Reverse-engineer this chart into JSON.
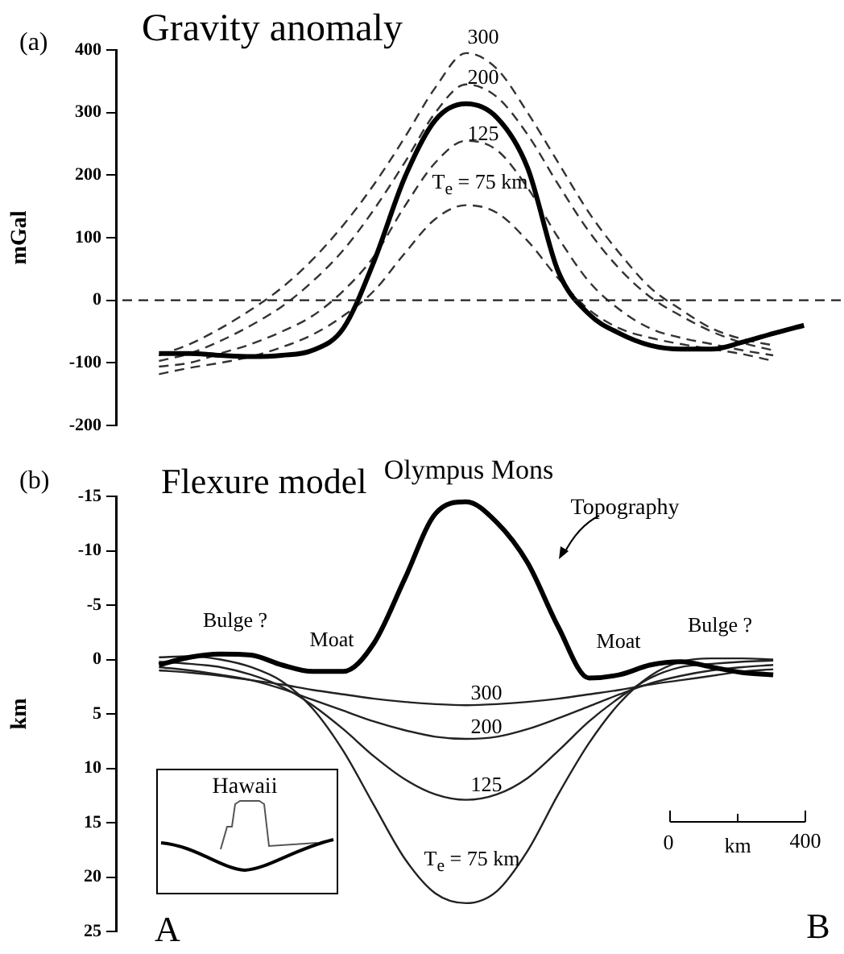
{
  "chart_data": [
    {
      "type": "line",
      "title": "Gravity anomaly",
      "ylabel": "mGal",
      "categories": [
        null,
        null,
        null,
        null,
        null,
        null,
        null,
        null,
        null,
        null,
        null,
        null,
        null,
        null,
        null,
        null,
        null,
        null,
        null,
        null,
        null,
        null
      ],
      "ylim": [
        -200,
        400
      ],
      "yticks": [
        -200,
        -100,
        0,
        100,
        200,
        300,
        400
      ],
      "tick_labels": "y",
      "grid": false,
      "legend": false,
      "marker": "none",
      "line_style": "solid",
      "series": [
        {
          "color": "#000000",
          "values": [
            -85,
            -85,
            -88,
            -90,
            -88,
            -80,
            -45,
            62,
            196,
            288,
            314,
            292,
            212,
            46,
            -22,
            -53,
            -72,
            -78,
            -78,
            -67,
            -53,
            -40
          ]
        },
        {
          "color": "#333333",
          "line_style": "dashed",
          "values": [
            -88,
            -70,
            -45,
            -15,
            20,
            65,
            120,
            185,
            260,
            340,
            395,
            370,
            300,
            220,
            140,
            75,
            20,
            -15,
            -45,
            -62,
            -72,
            null
          ]
        },
        {
          "color": "#333333",
          "line_style": "dashed",
          "values": [
            -97,
            -85,
            -65,
            -40,
            -10,
            30,
            80,
            145,
            220,
            300,
            345,
            325,
            265,
            185,
            110,
            50,
            5,
            -25,
            -50,
            -68,
            -80,
            null
          ]
        },
        {
          "color": "#333333",
          "line_style": "dashed",
          "values": [
            -106,
            -100,
            -85,
            -70,
            -50,
            -25,
            15,
            70,
            150,
            220,
            255,
            240,
            180,
            100,
            30,
            -15,
            -45,
            -60,
            -70,
            -80,
            -88,
            null
          ]
        },
        {
          "color": "#333333",
          "line_style": "dashed",
          "values": [
            -118,
            -108,
            -100,
            -90,
            -75,
            -55,
            -25,
            15,
            75,
            130,
            152,
            140,
            95,
            35,
            -15,
            -45,
            -60,
            -70,
            -78,
            -86,
            -97,
            null
          ]
        }
      ],
      "ref_lines": [
        {
          "axis": "y",
          "value": 0,
          "color": "#222222",
          "line_style": "dashed"
        }
      ],
      "annotations": [
        "(a)",
        "300",
        "200",
        "125",
        "T$_{e}$ = 75 km"
      ]
    },
    {
      "type": "line",
      "title": "Flexure model",
      "ylabel": "km",
      "categories": [
        null,
        null,
        null,
        null,
        null,
        null,
        null,
        null,
        null,
        null,
        null,
        null,
        null,
        null,
        null,
        null,
        null,
        null,
        null,
        null,
        null,
        null
      ],
      "ylim": [
        25,
        -15
      ],
      "yticks": [
        -15,
        -10,
        -5,
        0,
        5,
        10,
        15,
        20,
        25
      ],
      "tick_labels": "y",
      "grid": false,
      "legend": false,
      "marker": "none",
      "line_style": "solid",
      "series": [
        {
          "color": "#000000",
          "values": [
            0.5,
            -0.2,
            -0.5,
            -0.4,
            0.5,
            1.1,
            1.1,
            -1.5,
            -7.4,
            -13.4,
            -14.5,
            -12.6,
            -8.9,
            -3,
            1.7,
            1.4,
            0.5,
            0.2,
            0.7,
            1.2,
            1.4,
            null
          ]
        },
        {
          "color": "#222222",
          "values": [
            1,
            1.2,
            1.5,
            1.9,
            2.3,
            2.8,
            3.2,
            3.6,
            3.9,
            4.1,
            4.2,
            4.1,
            3.9,
            3.6,
            3.2,
            2.8,
            2.3,
            1.9,
            1.5,
            1.1,
            0.9,
            null
          ]
        },
        {
          "color": "#222222",
          "values": [
            0.7,
            1,
            1.4,
            1.9,
            2.7,
            3.7,
            4.7,
            5.7,
            6.5,
            7.1,
            7.3,
            7.1,
            6.4,
            5.4,
            4.3,
            3.2,
            2.2,
            1.5,
            1,
            0.7,
            0.5,
            null
          ]
        },
        {
          "color": "#222222",
          "values": [
            0.2,
            0.4,
            0.7,
            1.4,
            2.5,
            4.2,
            6.4,
            8.9,
            11,
            12.4,
            12.9,
            12.4,
            10.9,
            8.4,
            5.7,
            3.5,
            1.7,
            0.7,
            0.4,
            0.2,
            0.1,
            null
          ]
        },
        {
          "color": "#222222",
          "values": [
            -0.2,
            -0.3,
            0,
            0.7,
            2,
            4.5,
            8.4,
            13.4,
            18.3,
            21.5,
            22.4,
            21.3,
            17.6,
            12.4,
            7.7,
            4,
            1.5,
            0.2,
            -0.1,
            -0.1,
            0,
            null
          ]
        }
      ],
      "annotations": [
        "(b)",
        "Olympus Mons",
        "Topography",
        "Moat",
        "Moat",
        "Bulge ?",
        "Bulge ?",
        "300",
        "200",
        "125",
        "T$_{e}$ = 75 km",
        "Hawaii",
        "0",
        "km",
        "400",
        "A",
        "B"
      ]
    }
  ]
}
